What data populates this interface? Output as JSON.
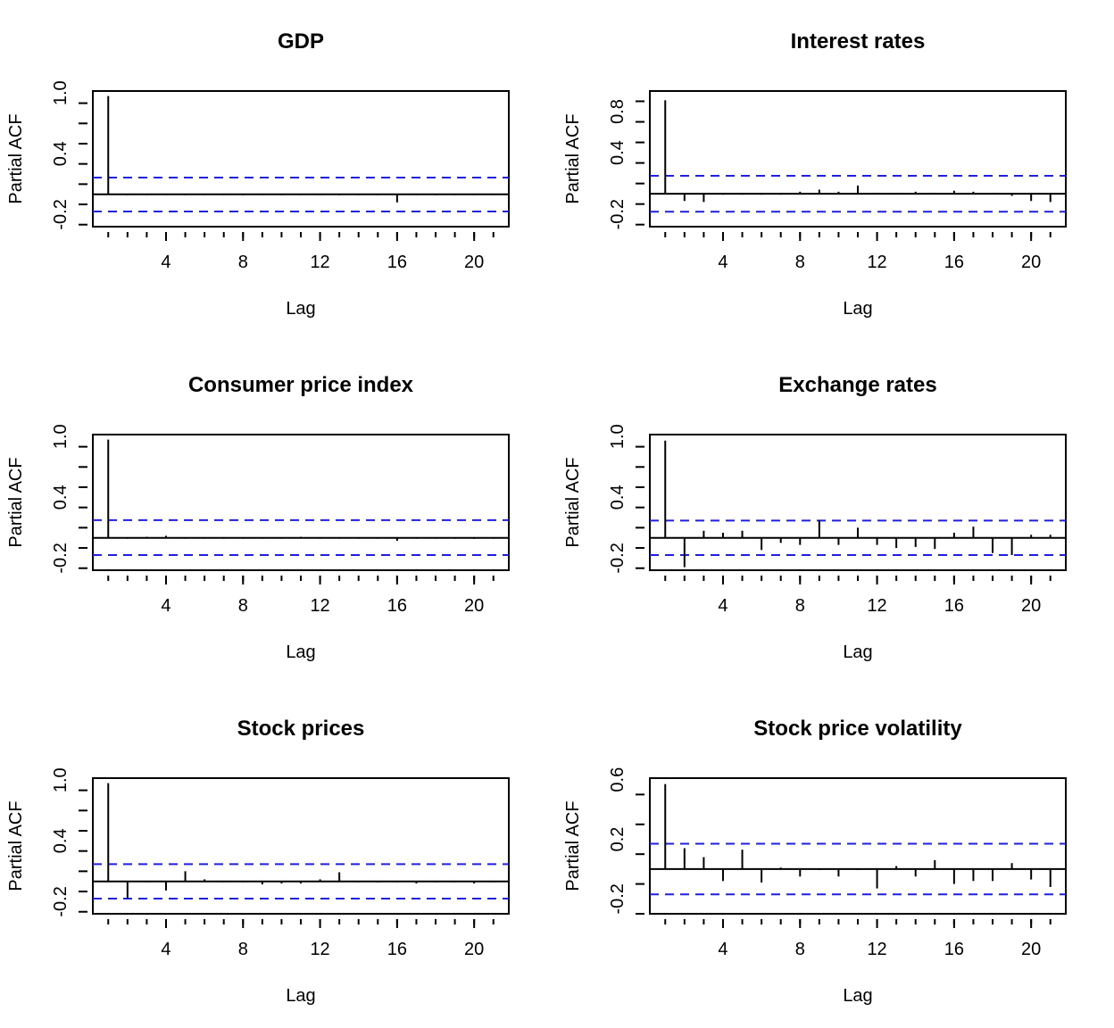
{
  "chart_data": [
    {
      "type": "bar",
      "title": "GDP",
      "xlabel": "Lag",
      "ylabel": "Partial ACF",
      "xticks": [
        "4",
        "8",
        "12",
        "16",
        "20"
      ],
      "yticks": [
        "-0.2",
        "0.4",
        "1.0"
      ],
      "lags": [
        1,
        2,
        3,
        4,
        5,
        6,
        7,
        8,
        9,
        10,
        11,
        12,
        13,
        14,
        15,
        16,
        17,
        18,
        19,
        20,
        21
      ],
      "values": [
        0.97,
        -0.01,
        0.0,
        0.0,
        -0.01,
        0.0,
        0.0,
        -0.01,
        0.0,
        -0.01,
        0.0,
        0.0,
        -0.01,
        0.0,
        0.0,
        -0.08,
        0.0,
        -0.01,
        0.0,
        0.0,
        0.0
      ],
      "ci": [
        0.165,
        -0.17
      ],
      "ylim": [
        -0.32,
        1.02
      ],
      "xlim": [
        0.2,
        21.8
      ]
    },
    {
      "type": "bar",
      "title": "Interest rates",
      "xlabel": "Lag",
      "ylabel": "Partial ACF",
      "xticks": [
        "4",
        "8",
        "12",
        "16",
        "20"
      ],
      "yticks": [
        "-0.2",
        "0.4",
        "0.8"
      ],
      "lags": [
        1,
        2,
        3,
        4,
        5,
        6,
        7,
        8,
        9,
        10,
        11,
        12,
        13,
        14,
        15,
        16,
        17,
        18,
        19,
        20,
        21
      ],
      "values": [
        0.91,
        -0.07,
        -0.08,
        0.0,
        0.0,
        0.0,
        0.0,
        0.02,
        0.04,
        0.02,
        0.08,
        0.01,
        0.01,
        0.02,
        0.01,
        0.03,
        0.02,
        0.01,
        -0.02,
        -0.07,
        -0.08
      ],
      "ci": [
        0.175,
        -0.175
      ],
      "ylim": [
        -0.32,
        1.0
      ],
      "xlim": [
        0.2,
        21.8
      ]
    },
    {
      "type": "bar",
      "title": "Consumer price index",
      "xlabel": "Lag",
      "ylabel": "Partial ACF",
      "xticks": [
        "4",
        "8",
        "12",
        "16",
        "20"
      ],
      "yticks": [
        "-0.2",
        "0.4",
        "1.0"
      ],
      "lags": [
        1,
        2,
        3,
        4,
        5,
        6,
        7,
        8,
        9,
        10,
        11,
        12,
        13,
        14,
        15,
        16,
        17,
        18,
        19,
        20,
        21
      ],
      "values": [
        0.97,
        0.0,
        0.01,
        0.02,
        0.0,
        0.0,
        0.0,
        0.0,
        0.0,
        0.0,
        0.01,
        0.0,
        0.0,
        0.0,
        0.0,
        -0.03,
        0.0,
        0.0,
        0.0,
        -0.01,
        0.0
      ],
      "ci": [
        0.175,
        -0.17
      ],
      "ylim": [
        -0.32,
        1.02
      ],
      "xlim": [
        0.2,
        21.8
      ]
    },
    {
      "type": "bar",
      "title": "Exchange rates",
      "xlabel": "Lag",
      "ylabel": "Partial ACF",
      "xticks": [
        "4",
        "8",
        "12",
        "16",
        "20"
      ],
      "yticks": [
        "-0.2",
        "0.4",
        "1.0"
      ],
      "lags": [
        1,
        2,
        3,
        4,
        5,
        6,
        7,
        8,
        9,
        10,
        11,
        12,
        13,
        14,
        15,
        16,
        17,
        18,
        19,
        20,
        21
      ],
      "values": [
        0.96,
        -0.29,
        0.07,
        0.05,
        0.07,
        -0.12,
        -0.05,
        -0.07,
        0.17,
        -0.07,
        0.1,
        -0.07,
        -0.1,
        -0.09,
        -0.11,
        0.05,
        0.11,
        -0.15,
        -0.17,
        0.03,
        0.03
      ],
      "ci": [
        0.17,
        -0.17
      ],
      "ylim": [
        -0.32,
        1.02
      ],
      "xlim": [
        0.2,
        21.8
      ]
    },
    {
      "type": "bar",
      "title": "Stock prices",
      "xlabel": "Lag",
      "ylabel": "Partial ACF",
      "xticks": [
        "4",
        "8",
        "12",
        "16",
        "20"
      ],
      "yticks": [
        "-0.2",
        "0.4",
        "1.0"
      ],
      "lags": [
        1,
        2,
        3,
        4,
        5,
        6,
        7,
        8,
        9,
        10,
        11,
        12,
        13,
        14,
        15,
        16,
        17,
        18,
        19,
        20,
        21
      ],
      "values": [
        0.97,
        -0.17,
        0.0,
        -0.09,
        0.1,
        0.02,
        0.0,
        0.0,
        -0.03,
        -0.02,
        -0.02,
        0.02,
        0.09,
        0.0,
        -0.01,
        0.0,
        -0.02,
        0.0,
        0.0,
        -0.02,
        0.0
      ],
      "ci": [
        0.17,
        -0.17
      ],
      "ylim": [
        -0.32,
        1.02
      ],
      "xlim": [
        0.2,
        21.8
      ]
    },
    {
      "type": "bar",
      "title": "Stock price volatility",
      "xlabel": "Lag",
      "ylabel": "Partial ACF",
      "xticks": [
        "4",
        "8",
        "12",
        "16",
        "20"
      ],
      "yticks": [
        "-0.2",
        "0.2",
        "0.6"
      ],
      "lags": [
        1,
        2,
        3,
        4,
        5,
        6,
        7,
        8,
        9,
        10,
        11,
        12,
        13,
        14,
        15,
        16,
        17,
        18,
        19,
        20,
        21
      ],
      "values": [
        0.57,
        0.14,
        0.08,
        -0.08,
        0.13,
        -0.09,
        0.01,
        -0.05,
        0.0,
        -0.05,
        0.0,
        -0.13,
        0.02,
        -0.05,
        0.06,
        -0.1,
        -0.08,
        -0.08,
        0.04,
        -0.07,
        -0.12
      ],
      "ci": [
        0.17,
        -0.17
      ],
      "ylim": [
        -0.3,
        0.61
      ],
      "xlim": [
        0.2,
        21.8
      ]
    }
  ]
}
